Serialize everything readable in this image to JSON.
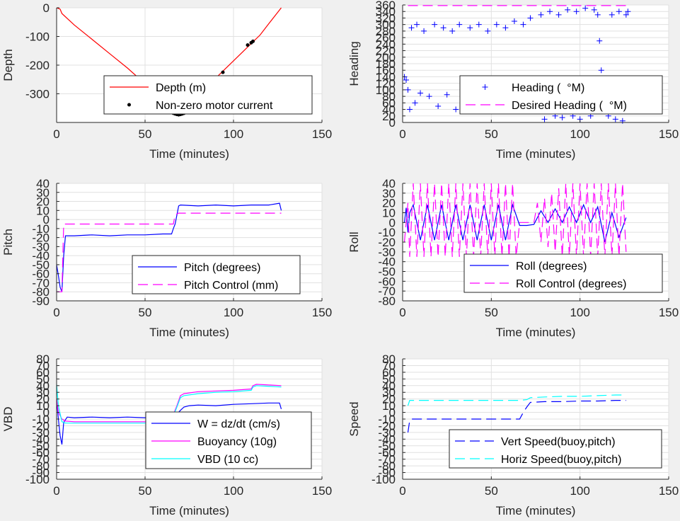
{
  "chart_data": [
    {
      "id": "depth",
      "type": "line",
      "ylabel": "Depth",
      "xlabel": "Time (minutes)",
      "xlim": [
        0,
        150
      ],
      "ylim": [
        -400,
        0
      ],
      "xticks": [
        0,
        50,
        100,
        150
      ],
      "yticks": [
        0,
        -100,
        -200,
        -300
      ],
      "grid": true,
      "legend_position": "bottom-right",
      "series": [
        {
          "name": "Depth (m)",
          "style": "line",
          "color": "#ff0000",
          "x": [
            0,
            2,
            3,
            10,
            20,
            30,
            40,
            50,
            55,
            60,
            64,
            67,
            69,
            71,
            75,
            80,
            90,
            100,
            110,
            115,
            120,
            127
          ],
          "y": [
            0,
            -5,
            -20,
            -60,
            -110,
            -160,
            -210,
            -265,
            -295,
            -330,
            -360,
            -370,
            -372,
            -368,
            -345,
            -310,
            -245,
            -185,
            -125,
            -95,
            -55,
            0
          ]
        },
        {
          "name": "Non-zero motor current",
          "style": "marker",
          "color": "#000000",
          "x": [
            66,
            67,
            68,
            69,
            70,
            71,
            72,
            73,
            75,
            77,
            94,
            108,
            110,
            111
          ],
          "y": [
            -368,
            -370,
            -372,
            -373,
            -372,
            -370,
            -368,
            -364,
            -352,
            -340,
            -225,
            -130,
            -122,
            -117
          ]
        }
      ]
    },
    {
      "id": "heading",
      "type": "scatter",
      "ylabel": "Heading",
      "xlabel": "Time (minutes)",
      "xlim": [
        0,
        150
      ],
      "ylim": [
        0,
        360
      ],
      "xticks": [
        0,
        50,
        100,
        150
      ],
      "yticks": [
        0,
        20,
        40,
        60,
        80,
        100,
        120,
        140,
        160,
        180,
        200,
        220,
        240,
        260,
        280,
        300,
        320,
        340,
        360
      ],
      "grid": true,
      "legend_position": "bottom-right",
      "series": [
        {
          "name": "Heading (  °M)",
          "style": "plus",
          "color": "#0000ff",
          "x": [
            1,
            2,
            3,
            4,
            5,
            7,
            8,
            10,
            12,
            15,
            18,
            20,
            23,
            25,
            28,
            30,
            32,
            35,
            38,
            40,
            43,
            46,
            48,
            50,
            53,
            56,
            58,
            60,
            63,
            66,
            68,
            70,
            72,
            75,
            78,
            80,
            83,
            86,
            88,
            90,
            93,
            96,
            98,
            100,
            103,
            106,
            108,
            110,
            111,
            112,
            113,
            114,
            116,
            118,
            120,
            122,
            124,
            126,
            127
          ],
          "y": [
            140,
            130,
            100,
            40,
            290,
            60,
            300,
            90,
            280,
            80,
            300,
            50,
            290,
            85,
            280,
            40,
            300,
            90,
            290,
            70,
            300,
            95,
            280,
            60,
            300,
            85,
            290,
            50,
            310,
            90,
            300,
            40,
            320,
            80,
            330,
            10,
            340,
            20,
            330,
            15,
            345,
            20,
            340,
            10,
            350,
            20,
            345,
            330,
            250,
            160,
            90,
            40,
            20,
            330,
            10,
            340,
            5,
            330,
            340
          ]
        },
        {
          "name": "Desired Heading (  °M)",
          "style": "dash",
          "color": "#ff00ff",
          "x": [
            3,
            127
          ],
          "y": [
            358,
            358
          ]
        }
      ]
    },
    {
      "id": "pitch",
      "type": "line",
      "ylabel": "Pitch",
      "xlabel": "Time (minutes)",
      "xlim": [
        0,
        150
      ],
      "ylim": [
        -90,
        40
      ],
      "xticks": [
        0,
        50,
        100,
        150
      ],
      "yticks": [
        40,
        30,
        20,
        10,
        0,
        -10,
        -20,
        -30,
        -40,
        -50,
        -60,
        -70,
        -80,
        -90
      ],
      "grid": true,
      "legend_position": "bottom-right",
      "series": [
        {
          "name": "Pitch (degrees)",
          "style": "line",
          "color": "#0000ff",
          "x": [
            0,
            1,
            2,
            3,
            4,
            5,
            10,
            20,
            30,
            40,
            50,
            60,
            65,
            66,
            67,
            68,
            69,
            70,
            80,
            90,
            100,
            110,
            120,
            126,
            127
          ],
          "y": [
            -50,
            -62,
            -75,
            -80,
            -40,
            -18,
            -18,
            -17,
            -18,
            -17,
            -17,
            -16,
            -16,
            -10,
            -5,
            5,
            15,
            16,
            15,
            16,
            15,
            16,
            16,
            18,
            10
          ]
        },
        {
          "name": "Pitch Control (mm)",
          "style": "dash",
          "color": "#ff00ff",
          "x": [
            0,
            3,
            4,
            66,
            67,
            69,
            127
          ],
          "y": [
            -80,
            -80,
            -5,
            -5,
            5,
            7,
            7
          ]
        }
      ]
    },
    {
      "id": "roll",
      "type": "line",
      "ylabel": "Roll",
      "xlabel": "Time (minutes)",
      "xlim": [
        0,
        150
      ],
      "ylim": [
        -80,
        40
      ],
      "xticks": [
        0,
        50,
        100,
        150
      ],
      "yticks": [
        40,
        30,
        20,
        10,
        0,
        -10,
        -20,
        -30,
        -40,
        -50,
        -60,
        -70,
        -80
      ],
      "grid": true,
      "legend_position": "bottom-right",
      "series": [
        {
          "name": "Roll (degrees)",
          "style": "line",
          "color": "#0000ff",
          "x": [
            1,
            2,
            3,
            4,
            6,
            10,
            14,
            18,
            22,
            26,
            30,
            34,
            38,
            42,
            46,
            50,
            54,
            58,
            62,
            66,
            70,
            74,
            78,
            82,
            86,
            90,
            94,
            98,
            102,
            106,
            110,
            114,
            118,
            122,
            126
          ],
          "y": [
            0,
            15,
            -10,
            10,
            18,
            -18,
            18,
            -18,
            18,
            -18,
            18,
            -18,
            18,
            -18,
            18,
            -18,
            18,
            -18,
            18,
            -3,
            -3,
            -2,
            12,
            0,
            14,
            0,
            16,
            0,
            18,
            0,
            16,
            -20,
            10,
            -15,
            5
          ]
        },
        {
          "name": "Roll Control (degrees)",
          "style": "dash",
          "color": "#ff00ff",
          "x": [
            1,
            3,
            4,
            6,
            8,
            10,
            12,
            14,
            16,
            18,
            20,
            22,
            24,
            26,
            28,
            30,
            32,
            34,
            36,
            38,
            40,
            42,
            44,
            46,
            48,
            50,
            52,
            54,
            56,
            58,
            60,
            62,
            64,
            66,
            70,
            74,
            76,
            78,
            80,
            82,
            84,
            86,
            88,
            90,
            92,
            94,
            96,
            98,
            100,
            102,
            104,
            106,
            108,
            110,
            112,
            114,
            116,
            118,
            120,
            122,
            124,
            126
          ],
          "y": [
            -20,
            20,
            -35,
            40,
            -35,
            40,
            -35,
            40,
            -35,
            40,
            -35,
            40,
            -35,
            40,
            -35,
            40,
            -35,
            40,
            -35,
            40,
            -35,
            40,
            -35,
            40,
            -35,
            40,
            -35,
            40,
            -35,
            40,
            -35,
            40,
            -35,
            0,
            0,
            0,
            20,
            -20,
            25,
            -25,
            30,
            -30,
            35,
            -35,
            40,
            -35,
            40,
            -35,
            40,
            -35,
            40,
            -35,
            40,
            -35,
            40,
            -35,
            40,
            -35,
            40,
            -35,
            40,
            -30
          ]
        }
      ]
    },
    {
      "id": "vbd",
      "type": "line",
      "ylabel": "VBD",
      "xlabel": "Time (minutes)",
      "xlim": [
        0,
        150
      ],
      "ylim": [
        -100,
        80
      ],
      "xticks": [
        0,
        50,
        100,
        150
      ],
      "yticks": [
        80,
        70,
        60,
        50,
        40,
        30,
        20,
        10,
        0,
        -10,
        -20,
        -30,
        -40,
        -50,
        -60,
        -70,
        -80,
        -90,
        -100
      ],
      "grid": true,
      "legend_position": "bottom-right",
      "series": [
        {
          "name": "W = dz/dt (cm/s)",
          "style": "line",
          "color": "#0000ff",
          "x": [
            0,
            1,
            2,
            3,
            4,
            6,
            10,
            20,
            30,
            40,
            50,
            60,
            65,
            67,
            70,
            72,
            75,
            80,
            90,
            100,
            110,
            120,
            126,
            127
          ],
          "y": [
            20,
            -10,
            -35,
            -48,
            -15,
            -7,
            -8,
            -7,
            -8,
            -7,
            -8,
            -8,
            -10,
            -5,
            3,
            8,
            10,
            11,
            10,
            12,
            13,
            14,
            14,
            5
          ]
        },
        {
          "name": "Buoyancy (10g)",
          "style": "line",
          "color": "#ff00ff",
          "x": [
            0,
            1,
            3,
            5,
            10,
            30,
            50,
            62,
            65,
            68,
            70,
            72,
            80,
            90,
            100,
            110,
            111,
            113,
            127
          ],
          "y": [
            20,
            0,
            -10,
            -13,
            -14,
            -14,
            -14,
            -14,
            -10,
            10,
            25,
            28,
            31,
            32,
            33,
            35,
            40,
            42,
            40
          ]
        },
        {
          "name": "VBD (10 cc)",
          "style": "line",
          "color": "#00ffff",
          "x": [
            0,
            1,
            3,
            5,
            10,
            30,
            50,
            62,
            65,
            68,
            70,
            72,
            80,
            90,
            100,
            110,
            111,
            113,
            127
          ],
          "y": [
            42,
            10,
            -14,
            -16,
            -16,
            -16,
            -16,
            -15,
            -12,
            8,
            22,
            25,
            28,
            30,
            31,
            33,
            38,
            40,
            38
          ]
        }
      ]
    },
    {
      "id": "speed",
      "type": "line",
      "ylabel": "Speed",
      "xlabel": "Time (minutes)",
      "xlim": [
        0,
        150
      ],
      "ylim": [
        -100,
        80
      ],
      "xticks": [
        0,
        50,
        100,
        150
      ],
      "yticks": [
        80,
        70,
        60,
        50,
        40,
        30,
        20,
        10,
        0,
        -10,
        -20,
        -30,
        -40,
        -50,
        -60,
        -70,
        -80,
        -90,
        -100
      ],
      "grid": true,
      "legend_position": "bottom-right",
      "series": [
        {
          "name": "Vert Speed(buoy,pitch)",
          "style": "dash",
          "color": "#0000ff",
          "x": [
            3,
            4,
            5,
            66,
            68,
            70,
            72,
            80,
            90,
            100,
            110,
            120,
            126
          ],
          "y": [
            -30,
            -12,
            -10,
            -10,
            0,
            8,
            15,
            16,
            16,
            17,
            17,
            18,
            18
          ]
        },
        {
          "name": "Horiz Speed(buoy,pitch)",
          "style": "dash",
          "color": "#00ffff",
          "x": [
            3,
            4,
            5,
            66,
            70,
            72,
            80,
            90,
            100,
            110,
            120,
            126
          ],
          "y": [
            10,
            18,
            18,
            18,
            19,
            22,
            23,
            24,
            24,
            25,
            26,
            26
          ]
        }
      ]
    }
  ]
}
